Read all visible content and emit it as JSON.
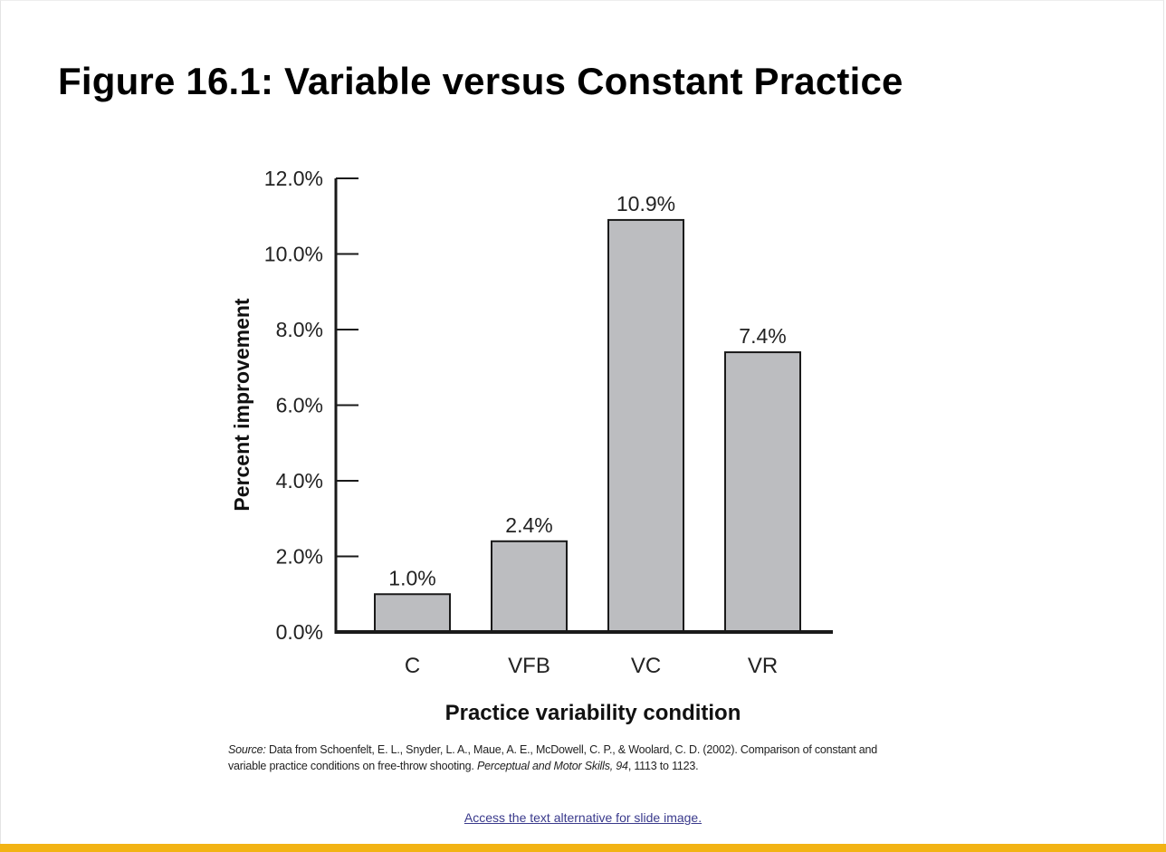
{
  "title": "Figure 16.1: Variable versus Constant Practice",
  "chart_data": {
    "type": "bar",
    "categories": [
      "C",
      "VFB",
      "VC",
      "VR"
    ],
    "values": [
      1.0,
      2.4,
      10.9,
      7.4
    ],
    "data_labels": [
      "1.0%",
      "2.4%",
      "10.9%",
      "7.4%"
    ],
    "title": "",
    "xlabel": "Practice variability condition",
    "ylabel": "Percent improvement",
    "ylim": [
      0,
      12
    ],
    "yticks": [
      0,
      2,
      4,
      6,
      8,
      10,
      12
    ],
    "ytick_labels": [
      "0.0%",
      "2.0%",
      "4.0%",
      "6.0%",
      "8.0%",
      "10.0%",
      "12.0%"
    ],
    "grid": false,
    "legend": "none",
    "bar_color": "#bcbdc0",
    "bar_edge_color": "#1a1a1a"
  },
  "source": {
    "label": "Source:",
    "text_1": " Data from Schoenfelt, E. L., Snyder, L. A., Maue, A. E., McDowell, C. P., & Woolard, C. D. (2002). Comparison of constant and variable practice conditions on free-throw shooting. ",
    "journal": "Perceptual and Motor Skills,",
    "volume": "94",
    "pages": ", 1113 to 1123."
  },
  "link_text": "Access the text alternative for slide image.",
  "accent_color": "#f2b314"
}
